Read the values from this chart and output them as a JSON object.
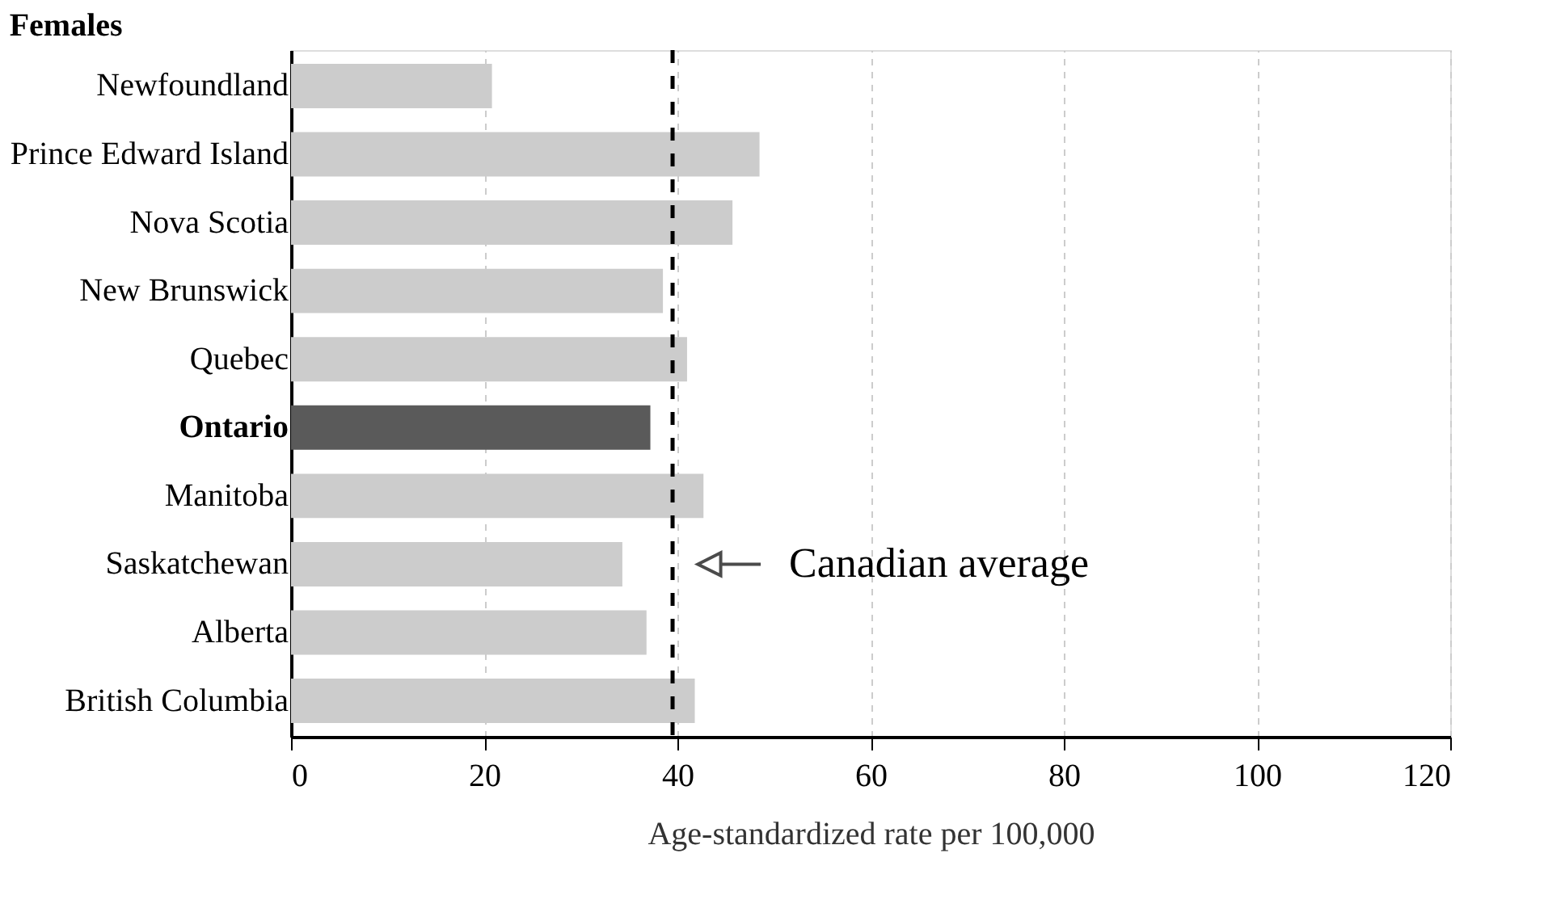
{
  "chart_data": {
    "type": "bar",
    "orientation": "horizontal",
    "title": "Females",
    "xlabel": "Age-standardized rate per 100,000",
    "categories": [
      "Newfoundland",
      "Prince Edward Island",
      "Nova Scotia",
      "New Brunswick",
      "Quebec",
      "Ontario",
      "Manitoba",
      "Saskatchewan",
      "Alberta",
      "British Columbia"
    ],
    "values": [
      20.8,
      48.5,
      45.7,
      38.5,
      41.0,
      37.2,
      42.7,
      34.3,
      36.8,
      41.8
    ],
    "colors": [
      "#cccccc",
      "#cccccc",
      "#cccccc",
      "#cccccc",
      "#cccccc",
      "#5a5a5a",
      "#cccccc",
      "#cccccc",
      "#cccccc",
      "#cccccc"
    ],
    "xlim": [
      0,
      120
    ],
    "xticks": [
      0,
      20,
      40,
      60,
      80,
      100,
      120
    ],
    "grid": "x",
    "ref_lines": [
      {
        "axis": "x",
        "value": 39.5,
        "label": null,
        "color": "#000000",
        "line_style": "dashed"
      }
    ],
    "annotations": [
      {
        "text": "Canadian average",
        "x": 39.5,
        "y": "Saskatchewan"
      }
    ]
  }
}
